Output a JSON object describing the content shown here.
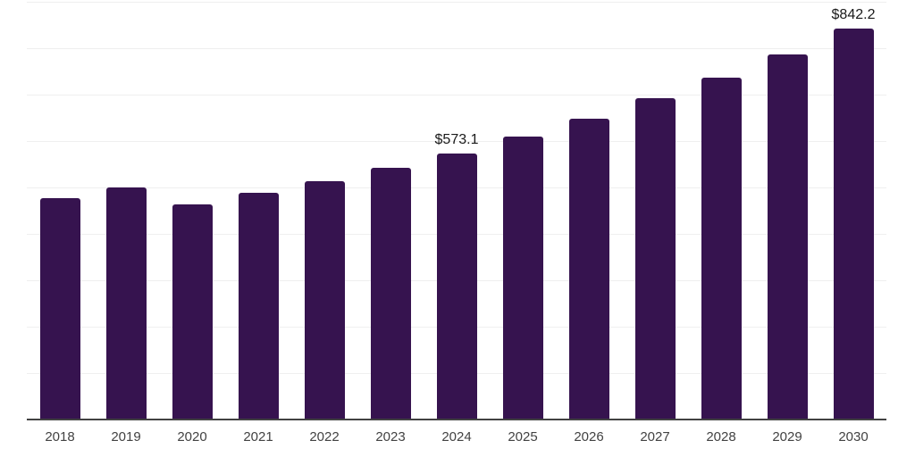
{
  "chart_data": {
    "type": "bar",
    "title": "",
    "xlabel": "",
    "ylabel": "",
    "categories": [
      "2018",
      "2019",
      "2020",
      "2021",
      "2022",
      "2023",
      "2024",
      "2025",
      "2026",
      "2027",
      "2028",
      "2029",
      "2030"
    ],
    "values": [
      476.9,
      500.0,
      463.5,
      488.5,
      512.5,
      542.3,
      573.1,
      609.6,
      648.1,
      692.3,
      736.5,
      786.5,
      842.2
    ],
    "data_labels": [
      "",
      "",
      "",
      "",
      "",
      "",
      "$573.1",
      "",
      "",
      "",
      "",
      "",
      "$842.2"
    ],
    "ylim": [
      0,
      900
    ],
    "gridline_step": 100,
    "grid": "horizontal-only",
    "legend_position": "none",
    "colors": {
      "bar": "#36134f",
      "gridline": "#efefef",
      "axis_line": "#424242",
      "tick_label": "#424242",
      "data_label": "#1a1a1a"
    }
  }
}
